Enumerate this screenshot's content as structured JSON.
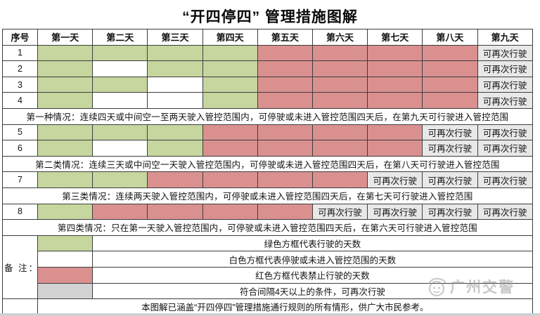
{
  "title": "“开四停四” 管理措施图解",
  "colors": {
    "green": "#c6d69e",
    "red": "#db9090",
    "gray_cell": "#e8e8e8",
    "gray_swatch": "#d2d2d2",
    "border": "#3d3d3d"
  },
  "table": {
    "header": {
      "seq": "序号",
      "days": [
        "第一天",
        "第二天",
        "第三天",
        "第四天",
        "第五天",
        "第六天",
        "第七天",
        "第八天",
        "第九天"
      ]
    },
    "drive_again": "可再次行驶",
    "groups": [
      {
        "rows": [
          {
            "seq": "1",
            "cells": [
              "G",
              "G",
              "G",
              "G",
              "R",
              "R",
              "R",
              "R",
              "A"
            ]
          },
          {
            "seq": "2",
            "cells": [
              "G",
              "W",
              "G",
              "G",
              "R",
              "R",
              "R",
              "R",
              "A"
            ]
          },
          {
            "seq": "3",
            "cells": [
              "G",
              "G",
              "W",
              "G",
              "R",
              "R",
              "R",
              "R",
              "A"
            ]
          },
          {
            "seq": "4",
            "cells": [
              "G",
              "W",
              "W",
              "G",
              "R",
              "R",
              "R",
              "R",
              "A"
            ]
          }
        ],
        "note": "第一种情况：连续四天或中间空一至两天驶入管控范围内，可停驶或未进入管控范围四天后，在第九天可行驶进入管控范围"
      },
      {
        "rows": [
          {
            "seq": "5",
            "cells": [
              "G",
              "G",
              "G",
              "R",
              "R",
              "R",
              "R",
              "A",
              "A"
            ]
          },
          {
            "seq": "6",
            "cells": [
              "G",
              "W",
              "G",
              "R",
              "R",
              "R",
              "R",
              "A",
              "A"
            ]
          }
        ],
        "note": "第二类情况：连续三天或中间空一天驶入管控范围内，可停驶或未进入管控范围四天后，在第八天可行驶进入管控范围"
      },
      {
        "rows": [
          {
            "seq": "7",
            "cells": [
              "G",
              "G",
              "R",
              "R",
              "R",
              "R",
              "A",
              "A",
              "A"
            ]
          }
        ],
        "note": "第三类情况：连续两天驶入管控范围内，可停驶或未进入管控范围四天后，在第七天可行驶进入管控范围"
      },
      {
        "rows": [
          {
            "seq": "8",
            "cells": [
              "G",
              "R",
              "R",
              "R",
              "R",
              "A",
              "A",
              "A",
              "A"
            ]
          }
        ],
        "note": "第四类情况：只在第一天驶入管控范围内，可停驶或未进入管控范围四天后，在第六天可行驶进入管控范围"
      }
    ]
  },
  "legend": {
    "label": "备 注：",
    "items": [
      {
        "swatch": "green",
        "text": "绿色方框代表行驶的天数"
      },
      {
        "swatch": "white",
        "text": "白色方框代表停驶或未进入管控范围的天数"
      },
      {
        "swatch": "red",
        "text": "红色方框代表禁止行驶的天数"
      },
      {
        "swatch": "gray",
        "text": "符合间隔4天以上的条件，可再次行驶"
      }
    ]
  },
  "footer_note": "本图解已涵盖“开四停四”管理措施通行规则的所有情形，供广大市民参考。",
  "watermark": "广州交警"
}
